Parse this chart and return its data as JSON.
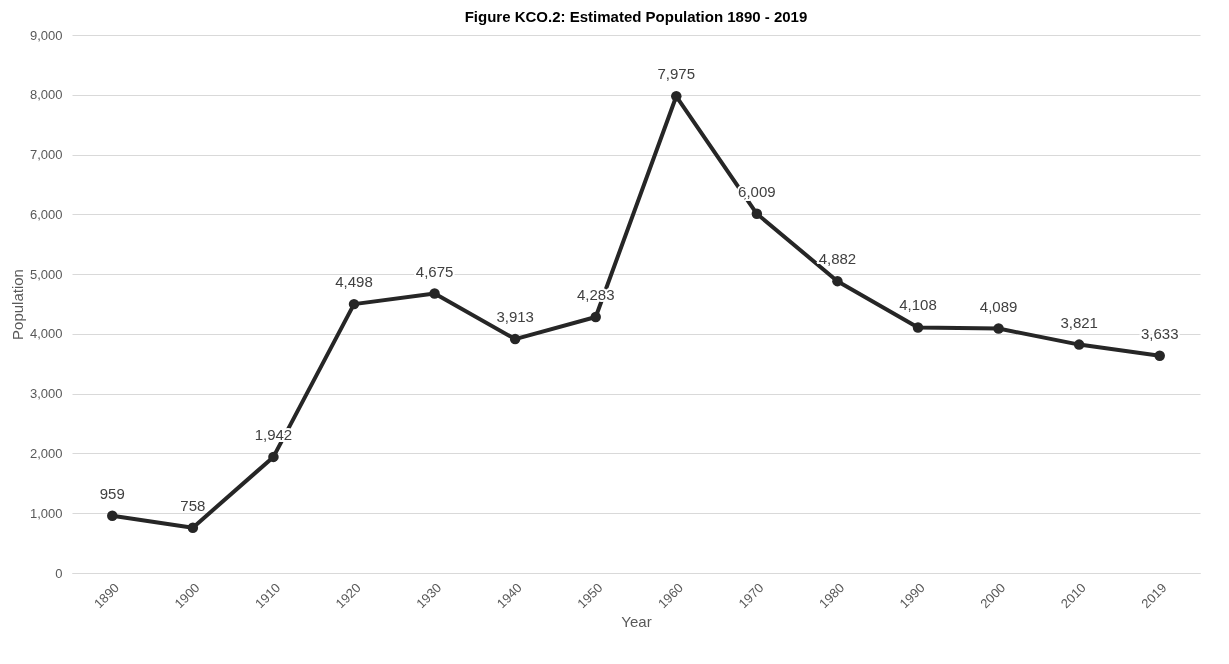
{
  "chart_data": {
    "type": "line",
    "title": "Figure KCO.2: Estimated Population 1890 - 2019",
    "xlabel": "Year",
    "ylabel": "Population",
    "categories": [
      "1890",
      "1900",
      "1910",
      "1920",
      "1930",
      "1940",
      "1950",
      "1960",
      "1970",
      "1980",
      "1990",
      "2000",
      "2010",
      "2019"
    ],
    "series": [
      {
        "color": "#262626",
        "values": [
          959,
          758,
          1942,
          4498,
          4675,
          3913,
          4283,
          7975,
          6009,
          4882,
          4108,
          4089,
          3821,
          3633
        ],
        "value_labels": [
          "959",
          "758",
          "1,942",
          "4,498",
          "4,675",
          "3,913",
          "4,283",
          "7,975",
          "6,009",
          "4,882",
          "4,108",
          "4,089",
          "3,821",
          "3,633"
        ]
      }
    ],
    "ylim": [
      0,
      9000
    ],
    "yticks": [
      {
        "value": 0,
        "label": "0"
      },
      {
        "value": 1000,
        "label": "1,000"
      },
      {
        "value": 2000,
        "label": "2,000"
      },
      {
        "value": 3000,
        "label": "3,000"
      },
      {
        "value": 4000,
        "label": "4,000"
      },
      {
        "value": 5000,
        "label": "5,000"
      },
      {
        "value": 6000,
        "label": "6,000"
      },
      {
        "value": 7000,
        "label": "7,000"
      },
      {
        "value": 8000,
        "label": "8,000"
      },
      {
        "value": 9000,
        "label": "9,000"
      }
    ],
    "grid": "y",
    "marker": "circle",
    "line_style": "solid",
    "legend": false
  }
}
